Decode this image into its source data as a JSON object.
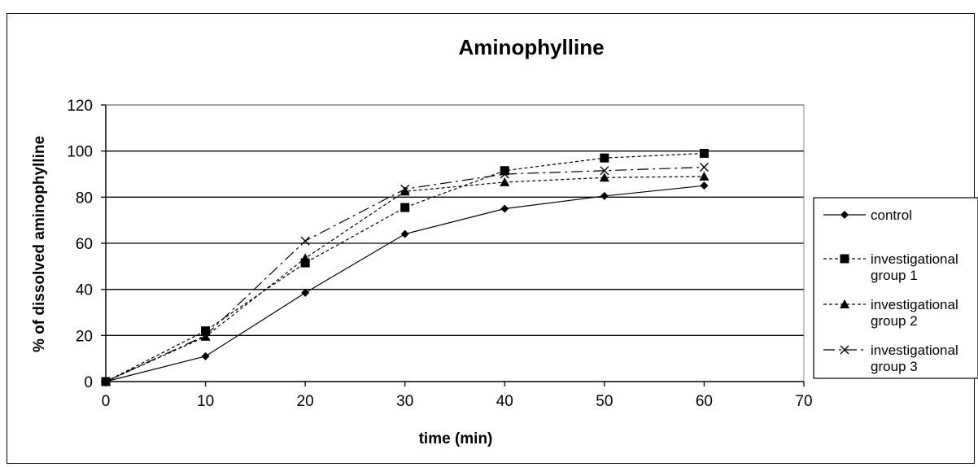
{
  "chart_data": {
    "type": "line",
    "title": "Aminophylline",
    "xlabel": "time (min)",
    "ylabel": "% of dissolved aminophylline",
    "xlim": [
      0,
      70
    ],
    "ylim": [
      0,
      120
    ],
    "x_ticks": [
      "0",
      "10",
      "20",
      "30",
      "40",
      "50",
      "60",
      "70"
    ],
    "y_ticks": [
      "0",
      "20",
      "40",
      "60",
      "80",
      "100",
      "120"
    ],
    "grid": "horizontal",
    "legend_position": "right",
    "x": [
      0,
      10,
      20,
      30,
      40,
      50,
      60
    ],
    "series": [
      {
        "name": "control",
        "values": [
          0,
          11,
          38.5,
          64,
          75,
          80.5,
          85
        ],
        "marker": "diamond",
        "dash": "solid"
      },
      {
        "name": "investigational group 1",
        "values": [
          0,
          22,
          51.5,
          75.5,
          91.5,
          97,
          99
        ],
        "marker": "square",
        "dash": "dotted"
      },
      {
        "name": "investigational group 2",
        "values": [
          0,
          19.5,
          53.5,
          82.5,
          86.5,
          88.5,
          89
        ],
        "marker": "triangle",
        "dash": "dotted"
      },
      {
        "name": "investigational group 3",
        "values": [
          0,
          20,
          61,
          83.5,
          90,
          91.5,
          93
        ],
        "marker": "x",
        "dash": "dashdot"
      }
    ]
  },
  "legend": {
    "entries": [
      {
        "lines": [
          "control"
        ]
      },
      {
        "lines": [
          "investigational",
          "group 1"
        ]
      },
      {
        "lines": [
          "investigational",
          "group 2"
        ]
      },
      {
        "lines": [
          "investigational",
          "group 3"
        ]
      }
    ]
  }
}
